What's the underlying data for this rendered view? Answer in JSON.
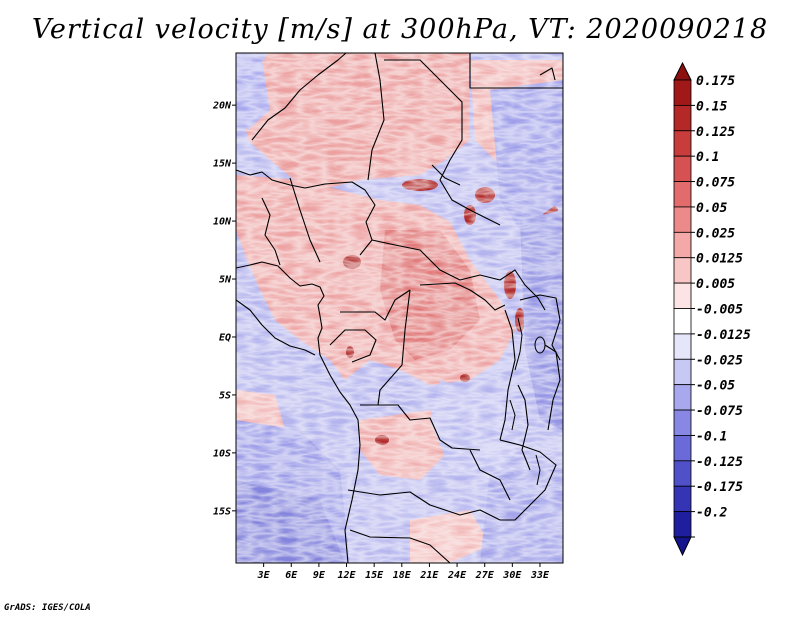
{
  "title": "Vertical velocity [m/s] at 300hPa, VT: 2020090218",
  "credit": "GrADS: IGES/COLA",
  "map": {
    "lon_range": [
      0,
      35.5
    ],
    "lat_range": [
      -19.5,
      24.5
    ],
    "lat_ticks": [
      {
        "value": 20,
        "label": "20N"
      },
      {
        "value": 15,
        "label": "15N"
      },
      {
        "value": 10,
        "label": "10N"
      },
      {
        "value": 5,
        "label": "5N"
      },
      {
        "value": 0,
        "label": "EQ"
      },
      {
        "value": -5,
        "label": "5S"
      },
      {
        "value": -10,
        "label": "10S"
      },
      {
        "value": -15,
        "label": "15S"
      }
    ],
    "lon_ticks": [
      {
        "value": 3,
        "label": "3E"
      },
      {
        "value": 6,
        "label": "6E"
      },
      {
        "value": 9,
        "label": "9E"
      },
      {
        "value": 12,
        "label": "12E"
      },
      {
        "value": 15,
        "label": "15E"
      },
      {
        "value": 18,
        "label": "18E"
      },
      {
        "value": 21,
        "label": "21E"
      },
      {
        "value": 24,
        "label": "24E"
      },
      {
        "value": 27,
        "label": "27E"
      },
      {
        "value": 30,
        "label": "30E"
      },
      {
        "value": 33,
        "label": "33E"
      }
    ]
  },
  "colorbar": {
    "levels": [
      {
        "label": "0.175",
        "color": "#a01818"
      },
      {
        "label": "0.15",
        "color": "#b42828"
      },
      {
        "label": "0.125",
        "color": "#c83c3c"
      },
      {
        "label": "0.1",
        "color": "#d65252"
      },
      {
        "label": "0.075",
        "color": "#e26c6c"
      },
      {
        "label": "0.05",
        "color": "#ec8a8a"
      },
      {
        "label": "0.025",
        "color": "#f4a8a8"
      },
      {
        "label": "0.0125",
        "color": "#f9c6c6"
      },
      {
        "label": "0.005",
        "color": "#fde4e4"
      },
      {
        "label": "-0.005",
        "color": "#ffffff"
      },
      {
        "label": "-0.0125",
        "color": "#e6e6fb"
      },
      {
        "label": "-0.025",
        "color": "#c8c8f5"
      },
      {
        "label": "-0.05",
        "color": "#a8a8ee"
      },
      {
        "label": "-0.075",
        "color": "#8888e4"
      },
      {
        "label": "-0.1",
        "color": "#6a6ad8"
      },
      {
        "label": "-0.125",
        "color": "#5050c8"
      },
      {
        "label": "-0.175",
        "color": "#3434b4"
      },
      {
        "label": "-0.2",
        "color": "#1e1e9e"
      }
    ],
    "top_arrow_color": "#8c1010",
    "bottom_arrow_color": "#14148c"
  }
}
